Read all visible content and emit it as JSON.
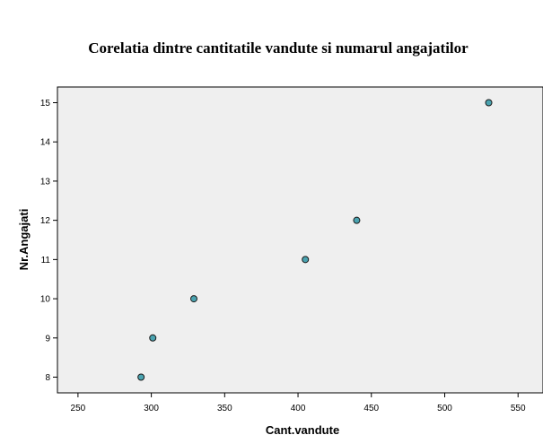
{
  "chart_data": {
    "type": "scatter",
    "title": "Corelatia dintre cantitatile vandute si numarul angajatilor",
    "xlabel": "Cant.vandute",
    "ylabel": "Nr.Angajati",
    "xlim": [
      236,
      567
    ],
    "ylim": [
      7.6,
      15.4
    ],
    "x_ticks": [
      250,
      300,
      350,
      400,
      450,
      500,
      550
    ],
    "y_ticks": [
      8,
      9,
      10,
      11,
      12,
      13,
      14,
      15
    ],
    "points": [
      {
        "x": 293,
        "y": 8
      },
      {
        "x": 301,
        "y": 9
      },
      {
        "x": 329,
        "y": 10
      },
      {
        "x": 405,
        "y": 11
      },
      {
        "x": 440,
        "y": 12
      },
      {
        "x": 530,
        "y": 15
      }
    ],
    "grid": false,
    "legend": "none",
    "colors": {
      "plot_background": "#efefef",
      "marker_fill": "#4aa3b0",
      "marker_stroke": "#1a1a1a",
      "axis": "#000000"
    }
  }
}
